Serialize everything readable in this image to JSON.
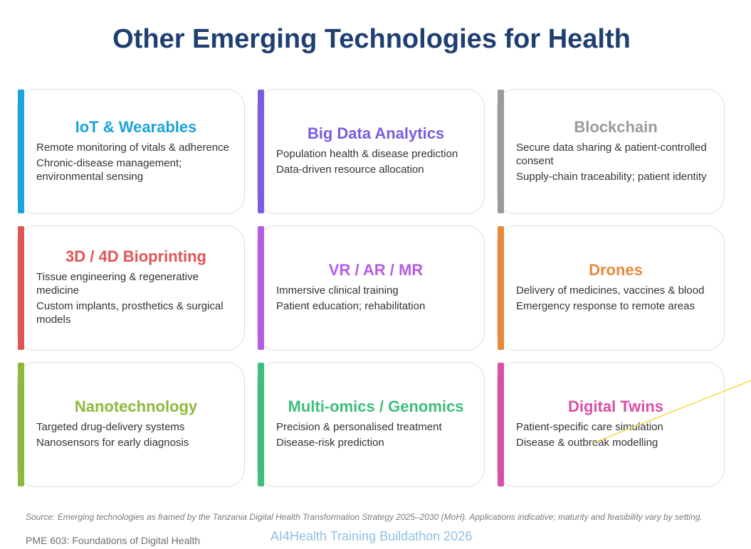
{
  "title": "Other Emerging Technologies for Health",
  "cards": [
    {
      "title": "IoT & Wearables",
      "color": "#1aa3dc",
      "bullets": [
        "Remote monitoring of vitals & adherence",
        "Chronic-disease management; environmental sensing"
      ]
    },
    {
      "title": "Big Data Analytics",
      "color": "#7b5ce0",
      "bullets": [
        "Population health & disease prediction",
        "Data-driven resource allocation"
      ]
    },
    {
      "title": "Blockchain",
      "color": "#9b9b9b",
      "bullets": [
        "Secure data sharing & patient-controlled consent",
        "Supply-chain traceability; patient identity"
      ]
    },
    {
      "title": "3D / 4D Bioprinting",
      "color": "#e05456",
      "bullets": [
        "Tissue engineering & regenerative medicine",
        "Custom implants, prosthetics & surgical models"
      ]
    },
    {
      "title": "VR / AR / MR",
      "color": "#b45de0",
      "bullets": [
        "Immersive clinical training",
        "Patient education; rehabilitation"
      ]
    },
    {
      "title": "Drones",
      "color": "#e6893a",
      "bullets": [
        "Delivery of medicines, vaccines & blood",
        "Emergency response to remote areas"
      ]
    },
    {
      "title": "Nanotechnology",
      "color": "#8db83b",
      "bullets": [
        "Targeted drug-delivery systems",
        "Nanosensors for early diagnosis"
      ]
    },
    {
      "title": "Multi-omics / Genomics",
      "color": "#3bbf7a",
      "bullets": [
        "Precision & personalised treatment",
        "Disease-risk prediction"
      ]
    },
    {
      "title": "Digital Twins",
      "color": "#d94fa6",
      "bullets": [
        "Patient-specific care simulation",
        "Disease & outbreak modelling"
      ]
    }
  ],
  "source": "Source: Emerging technologies as framed by the Tanzania Digital Health Transformation Strategy 2025–2030 (MoH). Applications indicative; maturity and feasibility vary by setting.",
  "course": "PME 603: Foundations of Digital Health",
  "event": "AI4Health Training Buildathon 2026",
  "annotation_color": "#f2dc4a"
}
